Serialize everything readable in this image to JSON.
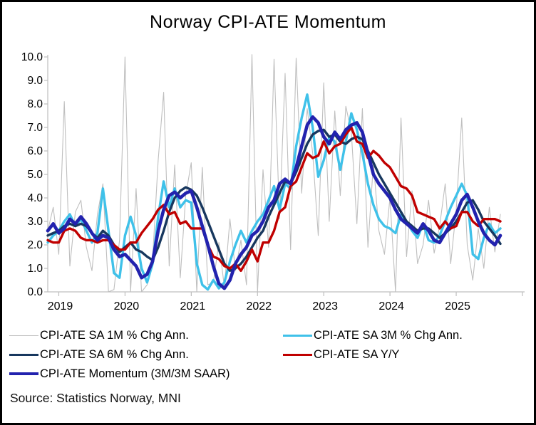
{
  "title": "Norway CPI-ATE Momentum",
  "source": "Source: Statistics Norway, MNI",
  "legend": {
    "items": [
      {
        "label": "CPI-ATE SA 1M % Chg Ann.",
        "color": "#BFBFBF",
        "weight": 1.3
      },
      {
        "label": "CPI-ATE SA 3M % Chg Ann.",
        "color": "#3FC1E9",
        "weight": 3.6
      },
      {
        "label": "CPI-ATE SA 6M % Chg Ann.",
        "color": "#17375E",
        "weight": 3.6
      },
      {
        "label": "CPI-ATE SA Y/Y",
        "color": "#C00000",
        "weight": 3.6
      },
      {
        "label": "CPI-ATE Momentum (3M/3M SAAR)",
        "color": "#2222AE",
        "weight": 4.5
      }
    ]
  },
  "chart_data": {
    "type": "line",
    "title": "Norway CPI-ATE Momentum",
    "start_month": "2018-11",
    "frequency": "monthly",
    "x_tick_labels": [
      "2019",
      "2020",
      "2021",
      "2022",
      "2023",
      "2024",
      "2025"
    ],
    "ylim": [
      0,
      10
    ],
    "ytick_step": 1.0,
    "grid": false,
    "legend_position": "bottom",
    "axis_color": "#BFBFBF",
    "series": [
      {
        "name": "CPI-ATE SA 1M % Chg Ann.",
        "color": "#BFBFBF",
        "width": 1.1,
        "values": [
          2.6,
          3.6,
          1.6,
          8.1,
          1.1,
          3.4,
          3.9,
          1.9,
          0.9,
          3.3,
          4.6,
          0.0,
          0.1,
          2.2,
          10.0,
          0.0,
          4.4,
          0.0,
          0.3,
          1.4,
          5.6,
          8.5,
          1.1,
          5.4,
          0.6,
          4.1,
          5.5,
          0.0,
          5.3,
          0.3,
          0.4,
          2.1,
          0.2,
          3.1,
          0.9,
          2.2,
          0.3,
          10.1,
          0.0,
          5.2,
          1.9,
          9.9,
          3.1,
          9.3,
          1.8,
          9.95,
          4.2,
          7.8,
          5.9,
          2.4,
          8.9,
          3.0,
          7.7,
          4.1,
          7.9,
          6.8,
          2.9,
          7.8,
          1.9,
          5.5,
          2.6,
          1.6,
          4.0,
          0.0,
          7.4,
          1.5,
          4.3,
          1.2,
          2.0,
          3.9,
          1.65,
          2.8,
          4.6,
          1.2,
          3.5,
          7.4,
          2.0,
          0.5,
          2.7,
          1.0,
          3.6,
          1.7,
          3.3
        ]
      },
      {
        "name": "CPI-ATE SA 3M % Chg Ann.",
        "color": "#3FC1E9",
        "width": 3.4,
        "values": [
          2.1,
          2.4,
          2.6,
          3.0,
          3.3,
          2.8,
          3.1,
          2.6,
          2.1,
          2.5,
          4.4,
          2.6,
          0.8,
          0.6,
          2.4,
          3.2,
          2.4,
          1.0,
          0.4,
          1.2,
          3.2,
          4.7,
          3.6,
          4.4,
          3.6,
          3.9,
          3.8,
          1.2,
          0.3,
          0.1,
          0.5,
          0.15,
          0.4,
          1.3,
          2.0,
          2.6,
          2.1,
          2.6,
          3.0,
          3.3,
          3.9,
          4.5,
          3.5,
          4.6,
          4.4,
          6.2,
          7.4,
          8.4,
          7.0,
          4.9,
          5.6,
          6.6,
          6.4,
          5.2,
          6.4,
          7.6,
          6.9,
          5.9,
          4.6,
          3.7,
          3.1,
          2.8,
          2.7,
          2.5,
          3.3,
          3.0,
          2.6,
          2.3,
          2.9,
          2.2,
          2.1,
          2.4,
          3.0,
          3.6,
          4.1,
          4.6,
          4.1,
          1.6,
          1.4,
          2.3,
          2.9,
          2.5,
          2.7
        ]
      },
      {
        "name": "CPI-ATE SA 6M % Chg Ann.",
        "color": "#17375E",
        "width": 3.4,
        "values": [
          2.4,
          2.5,
          2.6,
          2.8,
          2.9,
          2.8,
          2.9,
          2.8,
          2.5,
          2.3,
          2.6,
          2.4,
          2.0,
          1.7,
          1.9,
          2.1,
          1.8,
          1.7,
          1.5,
          1.35,
          1.9,
          2.6,
          3.4,
          4.0,
          4.3,
          4.45,
          4.35,
          4.1,
          3.6,
          3.0,
          2.4,
          1.8,
          1.2,
          0.9,
          1.0,
          1.2,
          1.5,
          1.9,
          2.3,
          2.6,
          3.2,
          3.7,
          4.2,
          4.7,
          4.6,
          5.1,
          5.7,
          6.3,
          6.7,
          6.85,
          6.9,
          6.6,
          6.7,
          6.4,
          6.3,
          6.5,
          6.6,
          6.5,
          6.0,
          5.5,
          5.0,
          4.6,
          4.2,
          3.8,
          3.4,
          3.0,
          2.8,
          2.6,
          2.7,
          2.7,
          2.5,
          2.3,
          2.5,
          2.7,
          3.0,
          3.4,
          3.8,
          3.9,
          3.5,
          3.0,
          2.7,
          2.4,
          2.05
        ]
      },
      {
        "name": "CPI-ATE SA Y/Y",
        "color": "#C00000",
        "width": 3.4,
        "values": [
          2.2,
          2.1,
          2.1,
          2.6,
          2.7,
          2.6,
          2.3,
          2.2,
          2.2,
          2.1,
          2.2,
          2.2,
          2.0,
          1.8,
          1.8,
          2.1,
          2.1,
          2.5,
          2.8,
          3.1,
          3.5,
          3.7,
          3.3,
          3.4,
          2.9,
          3.0,
          2.7,
          2.7,
          2.7,
          2.0,
          1.5,
          1.4,
          1.1,
          1.0,
          1.2,
          0.9,
          1.3,
          1.8,
          1.3,
          2.1,
          2.1,
          2.6,
          3.4,
          3.6,
          4.5,
          4.7,
          5.3,
          5.9,
          5.7,
          5.8,
          6.4,
          5.9,
          6.2,
          6.3,
          6.7,
          7.0,
          6.4,
          6.3,
          5.7,
          6.0,
          5.8,
          5.5,
          5.3,
          4.9,
          4.5,
          4.4,
          4.1,
          3.4,
          3.3,
          3.2,
          3.1,
          2.7,
          3.0,
          2.7,
          2.8,
          3.4,
          3.4,
          3.0,
          2.8,
          3.1,
          3.1,
          3.1,
          3.0
        ]
      },
      {
        "name": "CPI-ATE Momentum (3M/3M SAAR)",
        "color": "#2222AE",
        "width": 4.6,
        "values": [
          2.6,
          2.9,
          2.5,
          2.7,
          3.1,
          2.9,
          3.2,
          2.9,
          2.5,
          2.2,
          2.4,
          2.3,
          1.8,
          1.5,
          1.6,
          1.35,
          1.1,
          0.6,
          0.75,
          1.3,
          2.6,
          3.5,
          4.1,
          4.25,
          4.0,
          4.2,
          4.3,
          3.6,
          2.8,
          2.0,
          1.1,
          0.35,
          0.15,
          0.5,
          1.2,
          1.6,
          1.9,
          2.4,
          2.6,
          3.0,
          3.6,
          3.9,
          4.6,
          4.8,
          4.6,
          5.3,
          6.2,
          7.1,
          7.45,
          7.2,
          6.6,
          6.3,
          6.8,
          6.5,
          6.9,
          7.1,
          7.2,
          6.8,
          5.9,
          5.0,
          4.6,
          4.3,
          4.0,
          3.5,
          3.1,
          2.9,
          2.7,
          2.5,
          2.9,
          2.6,
          2.2,
          2.1,
          2.5,
          2.9,
          3.3,
          3.9,
          4.15,
          3.6,
          3.0,
          2.5,
          2.2,
          2.0,
          2.4
        ]
      }
    ]
  }
}
